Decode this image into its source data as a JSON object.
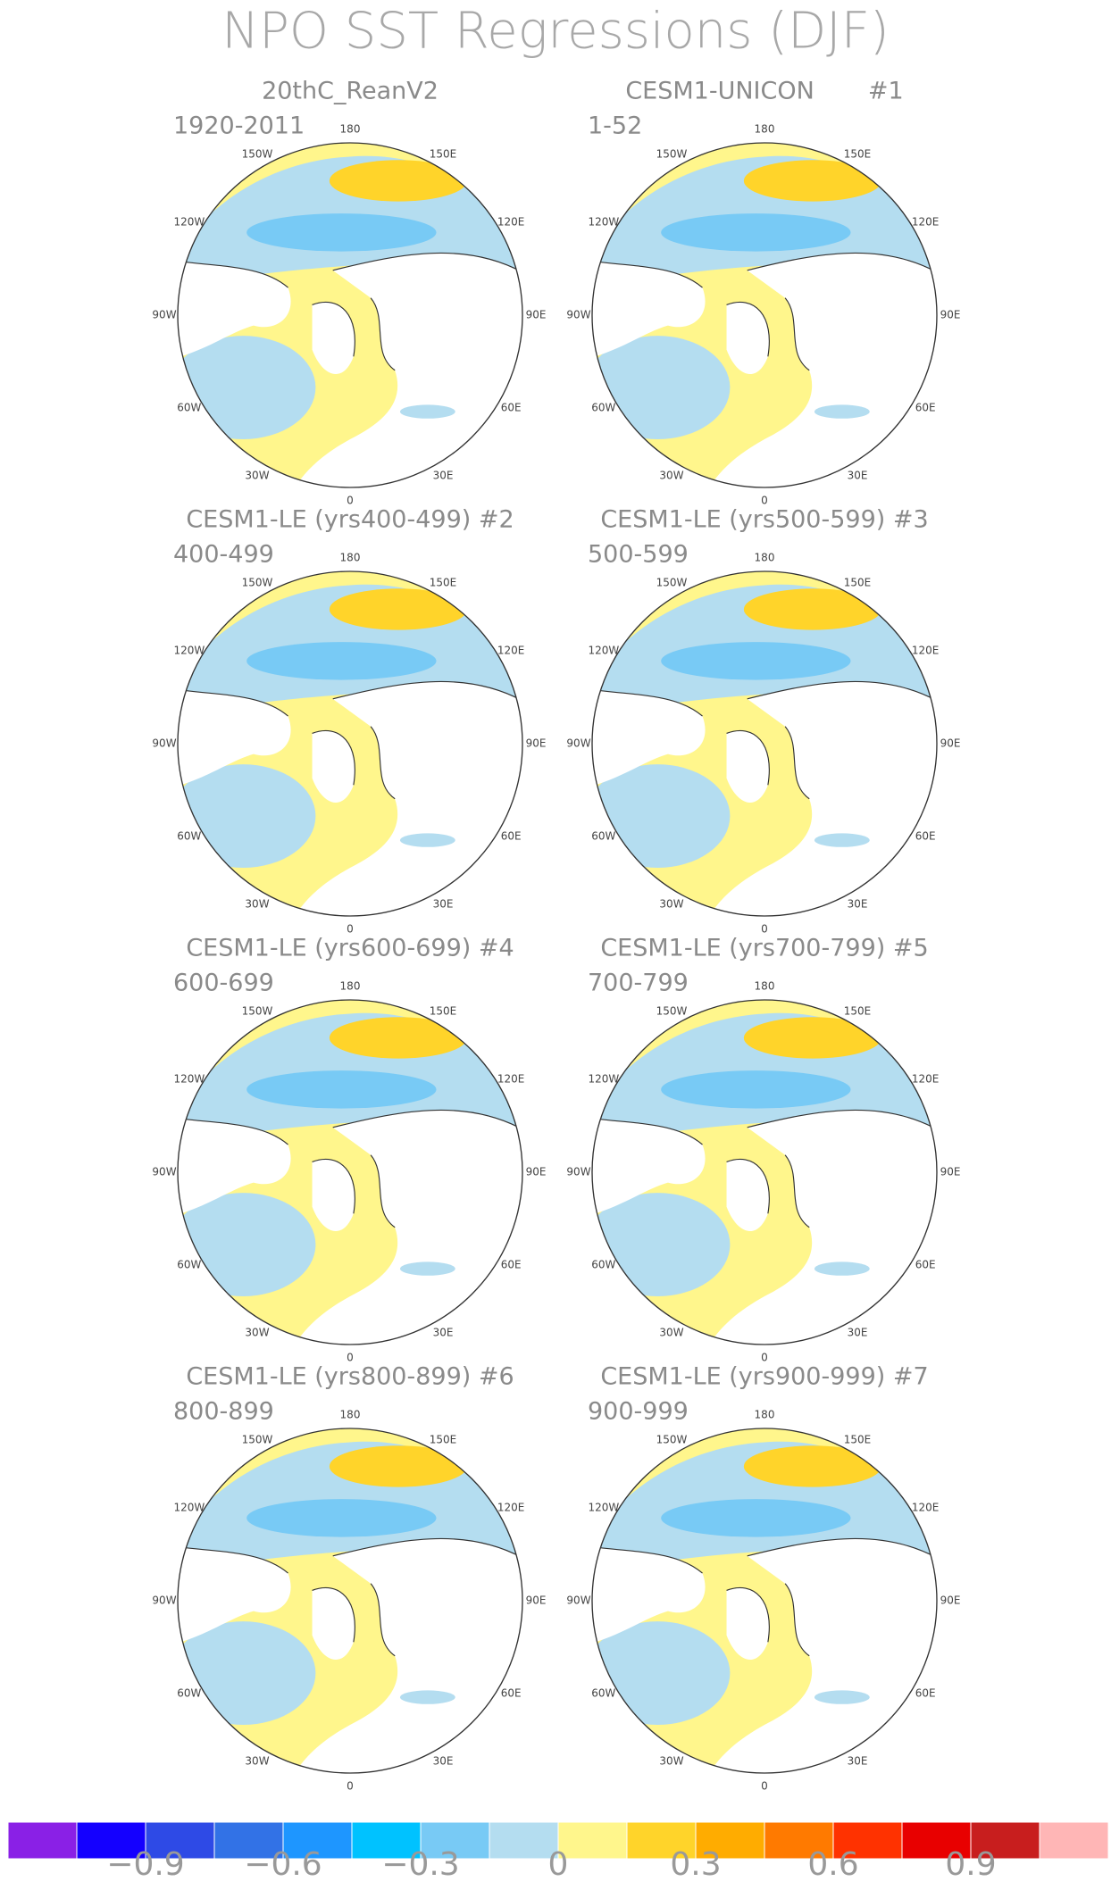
{
  "title": "NPO SST Regressions (DJF)",
  "panels": [
    {
      "title": "20thC_ReanV2",
      "subtitle": "1920-2011"
    },
    {
      "title": "CESM1-UNICON       #1",
      "subtitle": "1-52"
    },
    {
      "title": "CESM1-LE (yrs400-499) #2",
      "subtitle": "400-499"
    },
    {
      "title": "CESM1-LE (yrs500-599) #3",
      "subtitle": "500-599"
    },
    {
      "title": "CESM1-LE (yrs600-699) #4",
      "subtitle": "600-699"
    },
    {
      "title": "CESM1-LE (yrs700-799) #5",
      "subtitle": "700-799"
    },
    {
      "title": "CESM1-LE (yrs800-899) #6",
      "subtitle": "800-899"
    },
    {
      "title": "CESM1-LE (yrs900-999) #7",
      "subtitle": "900-999"
    }
  ],
  "lon_labels": [
    "180",
    "150E",
    "120E",
    "90E",
    "60E",
    "30E",
    "0",
    "30W",
    "60W",
    "90W",
    "120W",
    "150W"
  ],
  "colorbar": {
    "colors": [
      "#8a20e6",
      "#1400ff",
      "#2e4ae6",
      "#3272e6",
      "#1e96ff",
      "#00c2ff",
      "#78caf5",
      "#b4ddf0",
      "#fff68c",
      "#ffd42a",
      "#ffac00",
      "#ff7a00",
      "#ff3200",
      "#e80000",
      "#c81e1e",
      "#ffb6b6"
    ],
    "clim": [
      -1.2,
      1.2
    ],
    "ticks": [
      {
        "value": -0.9,
        "label": "−0.9"
      },
      {
        "value": -0.6,
        "label": "−0.6"
      },
      {
        "value": -0.3,
        "label": "−0.3"
      },
      0,
      {
        "value": 0.3,
        "label": "0.3"
      },
      {
        "value": 0.6,
        "label": "0.6"
      },
      {
        "value": 0.9,
        "label": "0.9"
      }
    ]
  }
}
